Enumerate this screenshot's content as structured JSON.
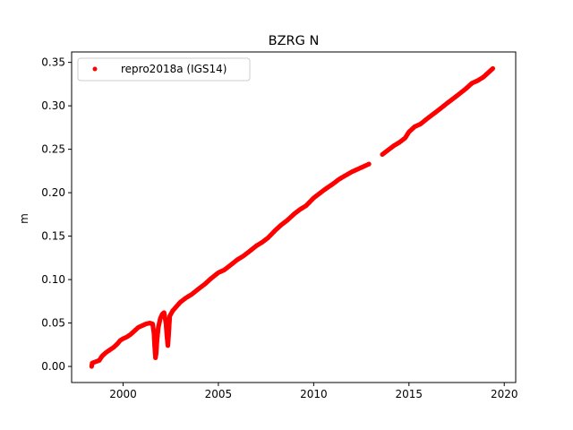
{
  "chart_data": {
    "type": "scatter",
    "title": "BZRG N",
    "xlabel": "",
    "ylabel": "m",
    "xlim": [
      1997.3,
      2020.6
    ],
    "ylim": [
      -0.0185,
      0.362
    ],
    "x_ticks": [
      2000,
      2005,
      2010,
      2015,
      2020
    ],
    "x_tick_labels": [
      "2000",
      "2005",
      "2010",
      "2015",
      "2020"
    ],
    "y_ticks": [
      0.0,
      0.05,
      0.1,
      0.15,
      0.2,
      0.25,
      0.3,
      0.35
    ],
    "y_tick_labels": [
      "0.00",
      "0.05",
      "0.10",
      "0.15",
      "0.20",
      "0.25",
      "0.30",
      "0.35"
    ],
    "grid": false,
    "legend_position": "upper-left",
    "series": [
      {
        "name": "repro2018a (IGS14)",
        "color": "#ff0000",
        "marker": "circle",
        "points": [
          [
            1998.35,
            0.0
          ],
          [
            1998.38,
            0.004
          ],
          [
            1998.75,
            0.007
          ],
          [
            1998.9,
            0.012
          ],
          [
            1999.1,
            0.016
          ],
          [
            1999.3,
            0.019
          ],
          [
            1999.5,
            0.022
          ],
          [
            1999.7,
            0.026
          ],
          [
            1999.85,
            0.03
          ],
          [
            2000.0,
            0.032
          ],
          [
            2000.2,
            0.034
          ],
          [
            2000.4,
            0.037
          ],
          [
            2000.6,
            0.041
          ],
          [
            2000.8,
            0.045
          ],
          [
            2001.0,
            0.047
          ],
          [
            2001.2,
            0.049
          ],
          [
            2001.4,
            0.05
          ],
          [
            2001.55,
            0.049
          ],
          [
            2001.62,
            0.038
          ],
          [
            2001.66,
            0.022
          ],
          [
            2001.7,
            0.01
          ],
          [
            2001.74,
            0.016
          ],
          [
            2001.78,
            0.03
          ],
          [
            2001.85,
            0.045
          ],
          [
            2001.95,
            0.055
          ],
          [
            2002.05,
            0.06
          ],
          [
            2002.15,
            0.062
          ],
          [
            2002.25,
            0.05
          ],
          [
            2002.3,
            0.035
          ],
          [
            2002.35,
            0.024
          ],
          [
            2002.4,
            0.04
          ],
          [
            2002.45,
            0.058
          ],
          [
            2002.6,
            0.064
          ],
          [
            2002.8,
            0.069
          ],
          [
            2003.0,
            0.074
          ],
          [
            2003.3,
            0.079
          ],
          [
            2003.6,
            0.083
          ],
          [
            2004.0,
            0.09
          ],
          [
            2004.3,
            0.095
          ],
          [
            2004.6,
            0.101
          ],
          [
            2005.0,
            0.108
          ],
          [
            2005.3,
            0.111
          ],
          [
            2005.6,
            0.116
          ],
          [
            2006.0,
            0.123
          ],
          [
            2006.3,
            0.127
          ],
          [
            2006.6,
            0.132
          ],
          [
            2007.0,
            0.139
          ],
          [
            2007.3,
            0.143
          ],
          [
            2007.6,
            0.148
          ],
          [
            2008.0,
            0.157
          ],
          [
            2008.3,
            0.163
          ],
          [
            2008.6,
            0.168
          ],
          [
            2009.0,
            0.176
          ],
          [
            2009.3,
            0.181
          ],
          [
            2009.6,
            0.185
          ],
          [
            2010.0,
            0.194
          ],
          [
            2010.3,
            0.199
          ],
          [
            2010.6,
            0.204
          ],
          [
            2011.0,
            0.21
          ],
          [
            2011.3,
            0.215
          ],
          [
            2011.6,
            0.219
          ],
          [
            2012.0,
            0.224
          ],
          [
            2012.3,
            0.227
          ],
          [
            2012.6,
            0.23
          ],
          [
            2012.9,
            0.233
          ],
          [
            2013.6,
            0.244
          ],
          [
            2013.9,
            0.249
          ],
          [
            2014.2,
            0.254
          ],
          [
            2014.5,
            0.258
          ],
          [
            2014.8,
            0.263
          ],
          [
            2015.0,
            0.27
          ],
          [
            2015.3,
            0.276
          ],
          [
            2015.6,
            0.279
          ],
          [
            2016.0,
            0.286
          ],
          [
            2016.3,
            0.291
          ],
          [
            2016.6,
            0.296
          ],
          [
            2017.0,
            0.303
          ],
          [
            2017.3,
            0.308
          ],
          [
            2017.6,
            0.313
          ],
          [
            2018.0,
            0.32
          ],
          [
            2018.3,
            0.326
          ],
          [
            2018.6,
            0.329
          ],
          [
            2018.9,
            0.333
          ],
          [
            2019.1,
            0.337
          ],
          [
            2019.3,
            0.341
          ],
          [
            2019.4,
            0.343
          ]
        ]
      }
    ]
  }
}
